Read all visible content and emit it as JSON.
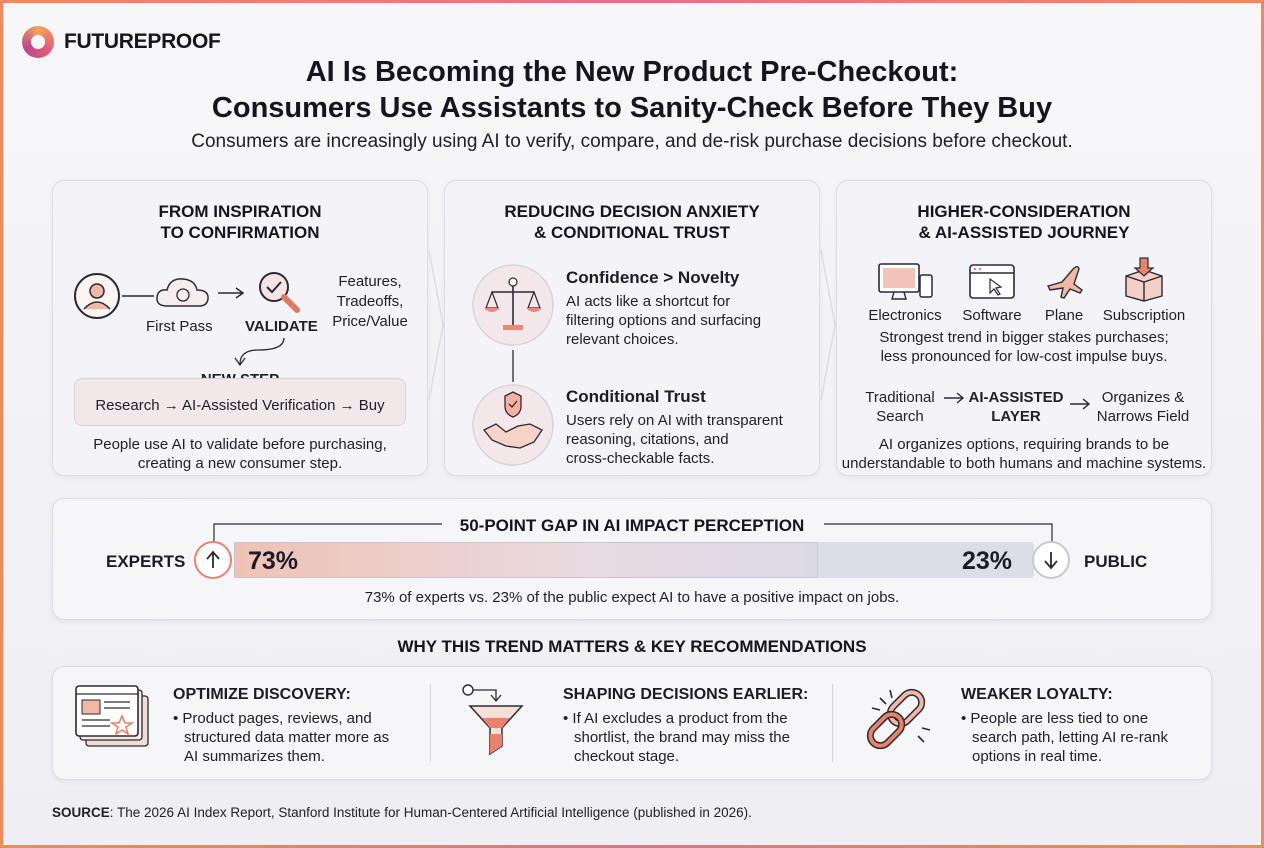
{
  "brand": {
    "name": "FUTUREPROOF"
  },
  "header": {
    "title_line1": "AI Is Becoming the New Product Pre-Checkout:",
    "title_line2": "Consumers Use Assistants to Sanity-Check Before They Buy",
    "subtitle": "Consumers are increasingly using AI to verify, compare, and de-risk purchase decisions before checkout."
  },
  "panel1": {
    "title_line1": "FROM INSPIRATION",
    "title_line2": "TO CONFIRMATION",
    "first_pass": "First Pass",
    "validate": "VALIDATE",
    "features_line1": "Features,",
    "features_line2": "Tradeoffs,",
    "features_line3": "Price/Value",
    "new_step": "NEW STEP",
    "flow": "Research → AI-Assisted Verification → Buy",
    "caption_line1": "People use AI to validate before purchasing,",
    "caption_line2": "creating a new consumer step."
  },
  "panel2": {
    "title_line1": "REDUCING DECISION ANXIETY",
    "title_line2": "& CONDITIONAL TRUST",
    "item1_title": "Confidence > Novelty",
    "item1_line1": "AI acts like a shortcut for",
    "item1_line2": "filtering options and surfacing",
    "item1_line3": "relevant choices.",
    "item2_title": "Conditional Trust",
    "item2_line1": "Users rely on AI with transparent",
    "item2_line2": "reasoning, citations, and",
    "item2_line3": "cross-checkable facts."
  },
  "panel3": {
    "title_line1": "HIGHER-CONSIDERATION",
    "title_line2": "& AI-ASSISTED JOURNEY",
    "categories": [
      "Electronics",
      "Software",
      "Plane",
      "Subscription"
    ],
    "trend_line1": "Strongest trend in bigger stakes purchases;",
    "trend_line2": "less pronounced for low-cost impulse buys.",
    "trad_line1": "Traditional",
    "trad_line2": "Search",
    "layer_line1": "AI-ASSISTED",
    "layer_line2": "LAYER",
    "org_line1": "Organizes &",
    "org_line2": "Narrows Field",
    "caption_line1": "AI organizes options, requiring brands to be",
    "caption_line2": "understandable to both humans and machine systems."
  },
  "gap": {
    "title": "50-POINT GAP IN AI IMPACT PERCEPTION",
    "experts_label": "EXPERTS",
    "experts_value": "73%",
    "experts_fraction": 0.73,
    "public_label": "PUBLIC",
    "public_value": "23%",
    "public_fraction": 0.23,
    "caption": "73% of experts vs. 23% of the public expect AI to have a positive impact on jobs."
  },
  "why": {
    "heading": "WHY THIS TREND MATTERS & KEY RECOMMENDATIONS",
    "items": [
      {
        "title": "OPTIMIZE DISCOVERY:",
        "line1": "• Product pages, reviews, and",
        "line2": "structured data matter more as",
        "line3": "AI summarizes them."
      },
      {
        "title": "SHAPING DECISIONS EARLIER:",
        "line1": "• If AI excludes a product from the",
        "line2": "shortlist, the brand may miss the",
        "line3": "checkout stage."
      },
      {
        "title": "WEAKER LOYALTY:",
        "line1": "• People are less tied to one",
        "line2": "search path, letting AI re-rank",
        "line3": "options in real time."
      }
    ]
  },
  "source": {
    "label": "SOURCE",
    "text": ": The 2026 AI Index Report, Stanford Institute for Human-Centered Artificial Intelligence (published in 2026)."
  },
  "colors": {
    "accent": "#e8826c",
    "accent2": "#d95f73",
    "text": "#1c1c28",
    "border": "#dcdce4"
  }
}
